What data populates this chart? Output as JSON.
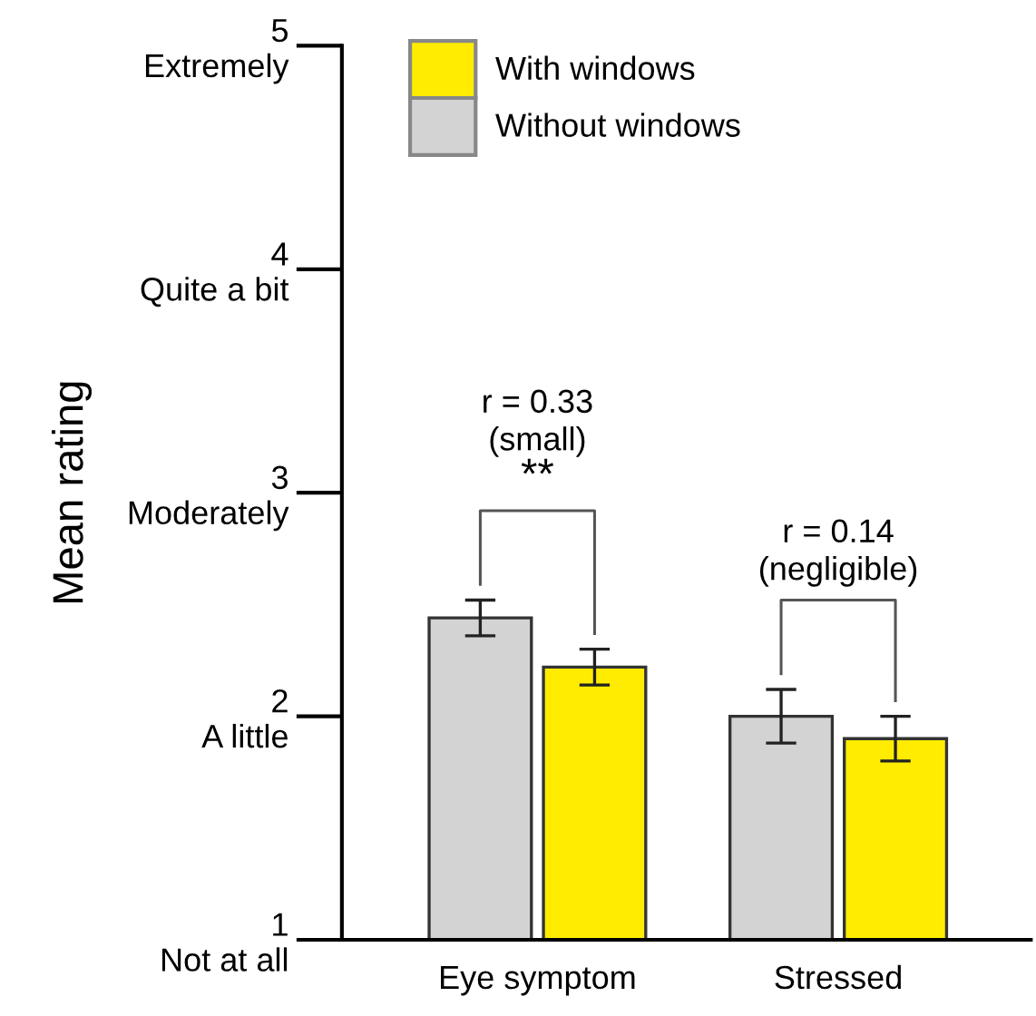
{
  "chart_data": {
    "type": "bar",
    "ylabel": "Mean rating",
    "categories": [
      "Eye symptom",
      "Stressed"
    ],
    "series": [
      {
        "name": "Without windows",
        "color": "#d3d3d3",
        "values": [
          2.44,
          2.0
        ],
        "errors": [
          0.08,
          0.12
        ]
      },
      {
        "name": "With windows",
        "color": "#ffec00",
        "values": [
          2.22,
          1.9
        ],
        "errors": [
          0.08,
          0.1
        ]
      }
    ],
    "ylim": [
      1,
      5
    ],
    "yticks": [
      {
        "value": 1,
        "label": "1\nNot at all"
      },
      {
        "value": 2,
        "label": "2\nA little"
      },
      {
        "value": 3,
        "label": "3\nModerately"
      },
      {
        "value": 4,
        "label": "4\nQuite a bit"
      },
      {
        "value": 5,
        "label": "5\nExtremely"
      }
    ],
    "annotations": [
      "r = 0.33\n(small)",
      "**",
      "r = 0.14\n(negligible)"
    ],
    "legend": "top left",
    "grid": false
  }
}
